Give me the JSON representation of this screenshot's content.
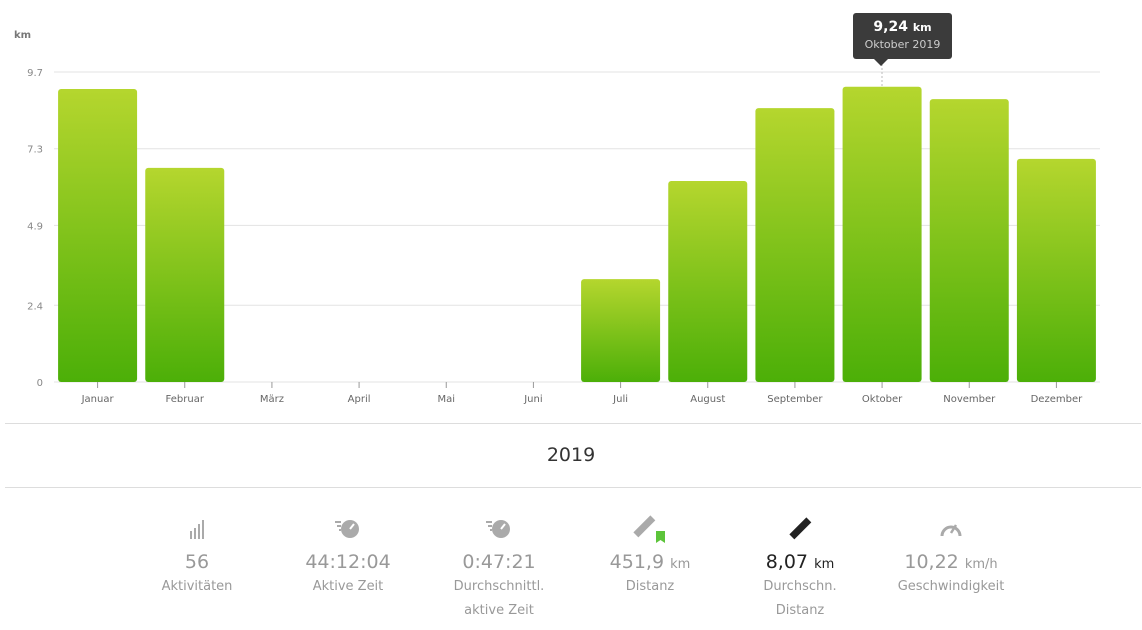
{
  "chart_data": {
    "type": "bar",
    "ylabel": "km",
    "ylim": [
      0,
      9.7
    ],
    "yticks": [
      "0",
      "2.4",
      "4.9",
      "7.3",
      "9.7"
    ],
    "categories": [
      "Januar",
      "Februar",
      "März",
      "April",
      "Mai",
      "Juni",
      "Juli",
      "August",
      "September",
      "Oktober",
      "November",
      "Dezember"
    ],
    "values": [
      9.17,
      6.7,
      0,
      0,
      0,
      0,
      3.22,
      6.29,
      8.57,
      9.24,
      8.85,
      6.98
    ],
    "grid": true,
    "colors": {
      "top": "#b5d62e",
      "bottom": "#4caf08"
    }
  },
  "tooltip": {
    "value": "9,24",
    "unit": "km",
    "month": "Oktober 2019"
  },
  "year": "2019",
  "stats": [
    {
      "icon": "bar-chart-icon",
      "value": "56",
      "unit": "",
      "label1": "Aktivitäten",
      "label2": ""
    },
    {
      "icon": "stopwatch-icon",
      "value": "44:12:04",
      "unit": "",
      "label1": "Aktive Zeit",
      "label2": ""
    },
    {
      "icon": "stopwatch-icon",
      "value": "0:47:21",
      "unit": "",
      "label1": "Durchschnittl.",
      "label2": "aktive Zeit"
    },
    {
      "icon": "ruler-bookmark-icon",
      "value": "451,9",
      "unit": "km",
      "label1": "Distanz",
      "label2": ""
    },
    {
      "icon": "ruler-icon",
      "value": "8,07",
      "unit": "km",
      "label1": "Durchschn.",
      "label2": "Distanz"
    },
    {
      "icon": "speedometer-icon",
      "value": "10,22",
      "unit": "km/h",
      "label1": "Geschwindigkeit",
      "label2": ""
    }
  ]
}
